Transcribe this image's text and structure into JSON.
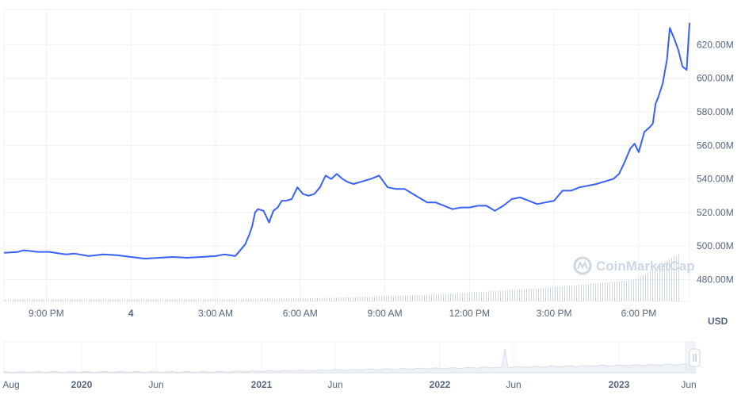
{
  "chart_data": [
    {
      "type": "line",
      "title": "",
      "xlabel": "",
      "ylabel": "",
      "currency_label": "USD",
      "watermark": "CoinMarketCap",
      "x_ticks": [
        "9:00 PM",
        "4",
        "3:00 AM",
        "6:00 AM",
        "9:00 AM",
        "12:00 PM",
        "3:00 PM",
        "6:00 PM"
      ],
      "y_ticks": [
        "480.00M",
        "500.00M",
        "520.00M",
        "540.00M",
        "560.00M",
        "580.00M",
        "600.00M",
        "620.00M"
      ],
      "ylim": [
        467,
        641
      ],
      "x_hours": [
        0,
        24.3
      ],
      "grid": true,
      "line_color": "#3861fb",
      "volume_color": "#cfd6e4",
      "series": [
        {
          "x": [
            0,
            0.5,
            0.7,
            1.2,
            1.6,
            2.0,
            2.2,
            2.5,
            3.0,
            3.5,
            4.0,
            4.5,
            5.0,
            5.5,
            6.0,
            6.5,
            7.0,
            7.5,
            7.8,
            8.0,
            8.2,
            8.3,
            8.45,
            8.55,
            8.7,
            8.8,
            8.9,
            9.0,
            9.2,
            9.4,
            9.55,
            9.7,
            9.85,
            10.0,
            10.2,
            10.4,
            10.6,
            10.8,
            11.0,
            11.2,
            11.4,
            11.6,
            11.8,
            12.0,
            12.2,
            12.4,
            12.6,
            12.8,
            13.0,
            13.3,
            13.6,
            13.9,
            14.2,
            14.5,
            14.8,
            15.0,
            15.3,
            15.6,
            15.9,
            16.2,
            16.5,
            16.8,
            17.1,
            17.4,
            17.7,
            18.0,
            18.3,
            18.6,
            18.9,
            19.2,
            19.5,
            19.8,
            20.1,
            20.4,
            20.7,
            21.0,
            21.2,
            21.4,
            21.6,
            21.8,
            22.0,
            22.2,
            22.35,
            22.5,
            22.7,
            22.9,
            23.0,
            23.1,
            23.2,
            23.35,
            23.5,
            23.6,
            23.75,
            23.9,
            24.05,
            24.2,
            24.3
          ],
          "values": [
            496,
            496.5,
            497.5,
            496.5,
            496.5,
            495.5,
            495,
            495.5,
            494,
            495,
            494.5,
            493.5,
            492.5,
            493,
            493.5,
            493,
            493.5,
            494,
            495,
            494.5,
            494,
            496,
            499,
            501,
            507,
            512,
            520,
            522,
            521,
            514,
            521,
            523,
            527,
            527,
            528,
            535,
            531,
            530,
            531,
            535,
            542,
            540,
            543,
            540,
            538,
            537,
            538,
            539,
            540,
            542,
            535,
            534,
            534,
            531,
            528,
            526,
            526,
            524,
            522,
            523,
            523,
            524,
            524,
            521,
            524,
            528,
            529,
            527,
            525,
            526,
            527,
            533,
            533,
            535,
            536,
            537,
            538,
            539,
            540,
            543,
            550,
            558,
            561,
            556,
            568,
            571,
            573,
            585,
            589,
            597,
            611,
            630,
            624,
            617,
            607,
            605,
            633
          ]
        }
      ]
    },
    {
      "type": "area",
      "title": "",
      "x_ticks": [
        "Aug",
        "2020",
        "Jun",
        "2021",
        "Jun",
        "2022",
        "Jun",
        "2023",
        "Jun"
      ],
      "range_handle_icon": "range-handle-icon"
    }
  ]
}
